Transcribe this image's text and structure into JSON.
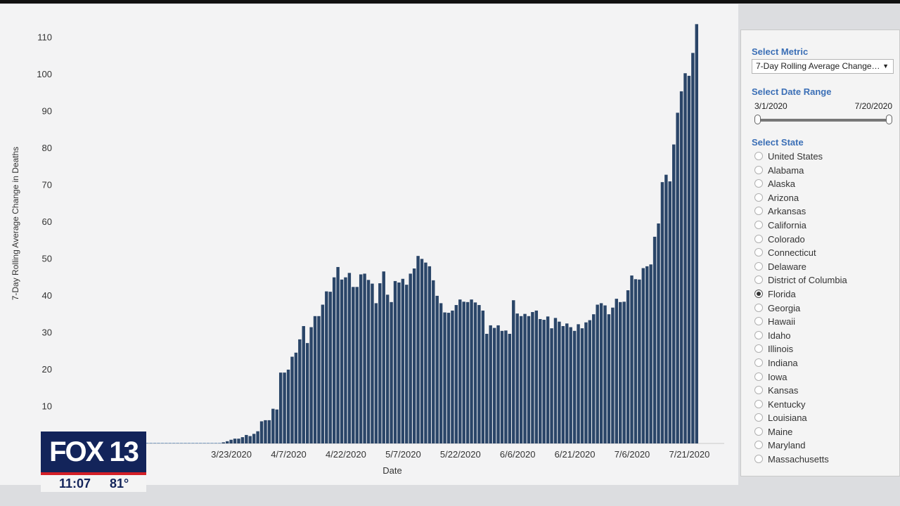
{
  "chart_data": {
    "type": "bar",
    "xlabel": "Date",
    "ylabel": "7-Day Rolling Average Change in Deaths",
    "ylim": [
      0,
      115
    ],
    "yticks": [
      10,
      20,
      30,
      40,
      50,
      60,
      70,
      80,
      90,
      100,
      110
    ],
    "x_start": "3/1/2020",
    "x_end": "7/21/2020",
    "xtick_labels": [
      "3/23/2020",
      "4/7/2020",
      "4/22/2020",
      "5/7/2020",
      "5/22/2020",
      "6/6/2020",
      "6/21/2020",
      "7/6/2020",
      "7/21/2020"
    ],
    "bar_color": "#2a4568",
    "grid": false,
    "values": [
      0,
      0,
      0,
      0,
      0,
      0,
      0,
      0,
      0,
      0,
      0,
      0,
      0,
      0,
      0,
      0,
      0,
      0,
      0,
      0,
      0.3,
      0.6,
      1.0,
      1.3,
      1.3,
      1.7,
      2.3,
      2.0,
      2.6,
      3.3,
      6.0,
      6.3,
      6.3,
      9.4,
      9.2,
      19.2,
      19.2,
      20.0,
      23.5,
      24.6,
      28.2,
      31.8,
      27.2,
      31.5,
      34.5,
      34.5,
      37.6,
      41.2,
      41.1,
      45.0,
      47.8,
      44.4,
      45.0,
      46.2,
      42.4,
      42.4,
      45.8,
      46.0,
      44.3,
      43.3,
      38.0,
      43.4,
      46.6,
      40.3,
      38.3,
      44.0,
      43.6,
      44.6,
      43.0,
      46.0,
      47.4,
      50.8,
      50.0,
      49.0,
      48.0,
      44.2,
      40.0,
      38.0,
      35.5,
      35.4,
      36.0,
      37.5,
      39.0,
      38.4,
      38.3,
      39.0,
      38.2,
      37.5,
      36.0,
      29.7,
      32.0,
      31.3,
      32.0,
      30.5,
      30.6,
      29.7,
      38.8,
      35.2,
      34.5,
      35.1,
      34.5,
      35.6,
      36.0,
      33.7,
      33.5,
      34.4,
      31.2,
      34.0,
      33.0,
      31.8,
      32.5,
      31.5,
      30.5,
      32.3,
      31.2,
      32.8,
      33.4,
      35.0,
      37.6,
      38.0,
      37.4,
      35.0,
      36.8,
      39.2,
      38.3,
      38.4,
      41.5,
      45.5,
      44.5,
      44.4,
      47.5,
      48.0,
      48.5,
      56.0,
      59.6,
      70.8,
      72.8,
      71.0,
      81.0,
      89.6,
      95.4,
      100.3,
      99.6,
      105.8,
      113.6
    ]
  },
  "controls": {
    "metric_heading": "Select Metric",
    "metric_value": "7-Day Rolling Average Change…",
    "date_range_heading": "Select Date Range",
    "date_range_start": "3/1/2020",
    "date_range_end": "7/20/2020",
    "state_heading": "Select State",
    "states": [
      {
        "name": "United States",
        "selected": false
      },
      {
        "name": "Alabama",
        "selected": false
      },
      {
        "name": "Alaska",
        "selected": false
      },
      {
        "name": "Arizona",
        "selected": false
      },
      {
        "name": "Arkansas",
        "selected": false
      },
      {
        "name": "California",
        "selected": false
      },
      {
        "name": "Colorado",
        "selected": false
      },
      {
        "name": "Connecticut",
        "selected": false
      },
      {
        "name": "Delaware",
        "selected": false
      },
      {
        "name": "District of Columbia",
        "selected": false
      },
      {
        "name": "Florida",
        "selected": true
      },
      {
        "name": "Georgia",
        "selected": false
      },
      {
        "name": "Hawaii",
        "selected": false
      },
      {
        "name": "Idaho",
        "selected": false
      },
      {
        "name": "Illinois",
        "selected": false
      },
      {
        "name": "Indiana",
        "selected": false
      },
      {
        "name": "Iowa",
        "selected": false
      },
      {
        "name": "Kansas",
        "selected": false
      },
      {
        "name": "Kentucky",
        "selected": false
      },
      {
        "name": "Louisiana",
        "selected": false
      },
      {
        "name": "Maine",
        "selected": false
      },
      {
        "name": "Maryland",
        "selected": false
      },
      {
        "name": "Massachusetts",
        "selected": false
      }
    ]
  },
  "broadcast": {
    "station_logo": "FOX 13",
    "time": "11:07",
    "temperature": "81°"
  }
}
